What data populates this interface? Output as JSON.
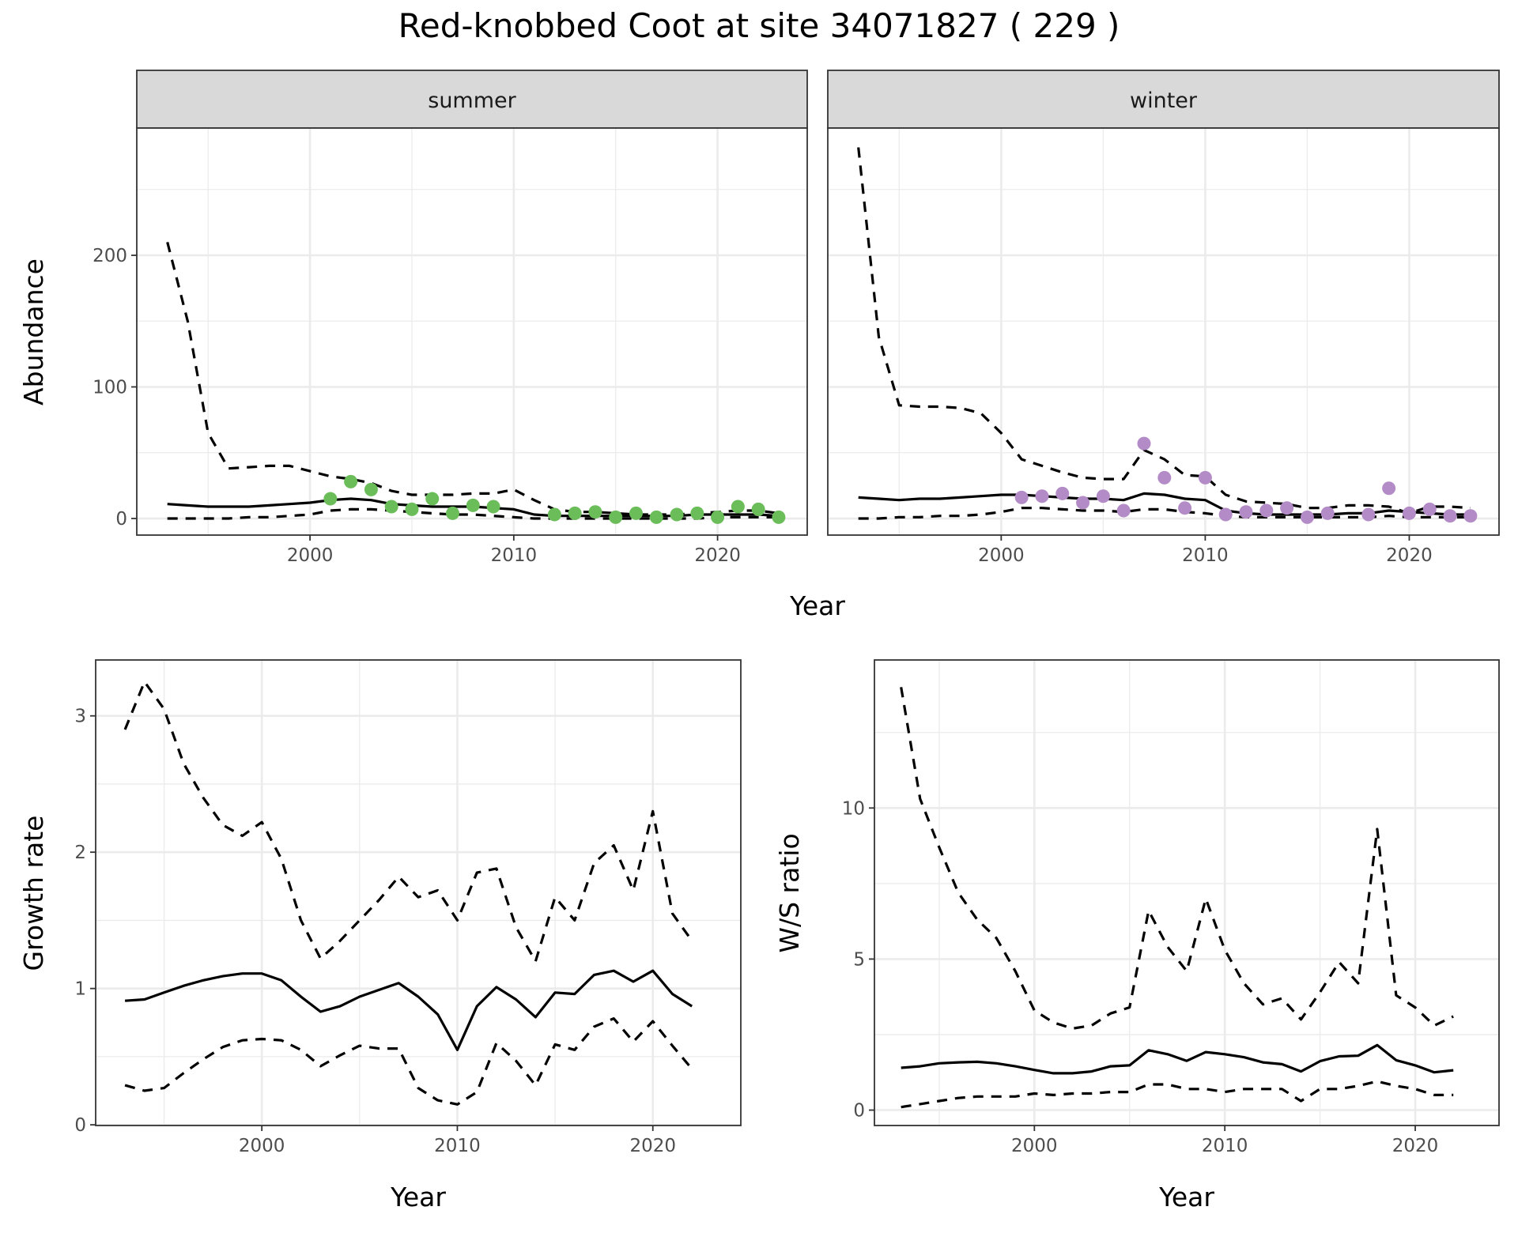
{
  "title": "Red-knobbed Coot at site 34071827 ( 229 )",
  "colors": {
    "summer_points": "#6abd58",
    "winter_points": "#b38bc7",
    "strip_fill": "#d9d9d9",
    "line": "#000000"
  },
  "chart_data": [
    {
      "type": "line",
      "xlabel": "Year",
      "ylabel": "Abundance",
      "xlim": [
        1991.5,
        2024.4
      ],
      "ylim": [
        -12.6,
        296.7
      ],
      "xticks": [
        2000,
        2010,
        2020
      ],
      "yticks": [
        0,
        100,
        200
      ],
      "grid": true,
      "facets": [
        {
          "label": "summer",
          "years": [
            1993,
            1994,
            1995,
            1996,
            1997,
            1998,
            1999,
            2000,
            2001,
            2002,
            2003,
            2004,
            2005,
            2006,
            2007,
            2008,
            2009,
            2010,
            2011,
            2012,
            2013,
            2014,
            2015,
            2016,
            2017,
            2018,
            2019,
            2020,
            2021,
            2022,
            2023
          ],
          "upper": [
            210,
            150,
            65,
            38,
            39,
            40,
            40,
            36,
            32,
            30,
            27,
            21,
            18,
            18,
            18,
            19,
            19,
            22,
            14,
            7,
            5,
            5,
            4,
            3,
            3,
            3,
            4,
            5,
            6,
            6,
            4
          ],
          "median": [
            11,
            10,
            9,
            9,
            9,
            10,
            11,
            12,
            14,
            15,
            14,
            11,
            10,
            9,
            9,
            9,
            8,
            7,
            3,
            2,
            2,
            2,
            2,
            2,
            2,
            2,
            3,
            3,
            3,
            3,
            2
          ],
          "lower": [
            0,
            0,
            0,
            0,
            1,
            1,
            2,
            3,
            6,
            7,
            7,
            6,
            5,
            4,
            3,
            3,
            2,
            1,
            0,
            0,
            0,
            0,
            0,
            0,
            0,
            0,
            0,
            1,
            1,
            1,
            1
          ],
          "points": {
            "years": [
              2001,
              2002,
              2003,
              2004,
              2005,
              2006,
              2007,
              2008,
              2009,
              2012,
              2013,
              2014,
              2015,
              2016,
              2017,
              2018,
              2019,
              2020,
              2021,
              2022,
              2023
            ],
            "values": [
              15,
              28,
              22,
              9,
              7,
              15,
              4,
              10,
              9,
              3,
              4,
              5,
              1,
              4,
              1,
              3,
              4,
              1,
              9,
              7,
              1
            ]
          }
        },
        {
          "label": "winter",
          "years": [
            1993,
            1994,
            1995,
            1996,
            1997,
            1998,
            1999,
            2000,
            2001,
            2002,
            2003,
            2004,
            2005,
            2006,
            2007,
            2008,
            2009,
            2010,
            2011,
            2012,
            2013,
            2014,
            2015,
            2016,
            2017,
            2018,
            2019,
            2020,
            2021,
            2022,
            2023
          ],
          "upper": [
            282,
            138,
            86,
            85,
            85,
            84,
            80,
            65,
            45,
            40,
            35,
            31,
            30,
            30,
            52,
            45,
            33,
            32,
            18,
            13,
            12,
            11,
            8,
            8,
            10,
            10,
            9,
            4,
            9,
            9,
            8
          ],
          "median": [
            16,
            15,
            14,
            15,
            15,
            16,
            17,
            18,
            18,
            17,
            16,
            15,
            15,
            14,
            19,
            18,
            15,
            14,
            6,
            4,
            3,
            3,
            3,
            3,
            4,
            4,
            6,
            5,
            4,
            3,
            3
          ],
          "lower": [
            0,
            0,
            1,
            1,
            2,
            2,
            3,
            5,
            8,
            8,
            7,
            6,
            6,
            5,
            7,
            7,
            5,
            4,
            2,
            1,
            1,
            1,
            1,
            1,
            1,
            1,
            2,
            1,
            1,
            1,
            1
          ],
          "points": {
            "years": [
              2001,
              2002,
              2003,
              2004,
              2005,
              2006,
              2007,
              2008,
              2009,
              2010,
              2011,
              2012,
              2013,
              2014,
              2015,
              2016,
              2018,
              2019,
              2020,
              2021,
              2022,
              2023
            ],
            "values": [
              16,
              17,
              19,
              12,
              17,
              6,
              57,
              31,
              8,
              31,
              3,
              5,
              6,
              8,
              1,
              4,
              3,
              23,
              4,
              7,
              2,
              2
            ]
          }
        }
      ]
    },
    {
      "type": "line",
      "xlabel": "Year",
      "ylabel": "Growth rate",
      "xlim": [
        1991.5,
        2024.5
      ],
      "ylim": [
        -0.005,
        3.41
      ],
      "xticks": [
        2000,
        2010,
        2020
      ],
      "yticks": [
        0,
        1,
        2,
        3
      ],
      "grid": true,
      "years": [
        1993,
        1994,
        1995,
        1996,
        1997,
        1998,
        1999,
        2000,
        2001,
        2002,
        2003,
        2004,
        2005,
        2006,
        2007,
        2008,
        2009,
        2010,
        2011,
        2012,
        2013,
        2014,
        2015,
        2016,
        2017,
        2018,
        2019,
        2020,
        2021,
        2022
      ],
      "upper": [
        2.9,
        3.25,
        3.05,
        2.65,
        2.4,
        2.2,
        2.12,
        2.22,
        1.95,
        1.5,
        1.22,
        1.35,
        1.5,
        1.65,
        1.82,
        1.67,
        1.72,
        1.5,
        1.85,
        1.88,
        1.45,
        1.2,
        1.67,
        1.5,
        1.92,
        2.05,
        1.72,
        2.3,
        1.55,
        1.35
      ],
      "median": [
        0.91,
        0.92,
        0.97,
        1.02,
        1.06,
        1.09,
        1.11,
        1.11,
        1.06,
        0.94,
        0.83,
        0.87,
        0.94,
        0.99,
        1.04,
        0.94,
        0.81,
        0.55,
        0.87,
        1.01,
        0.92,
        0.79,
        0.97,
        0.96,
        1.1,
        1.13,
        1.05,
        1.13,
        0.96,
        0.87
      ],
      "lower": [
        0.29,
        0.25,
        0.27,
        0.38,
        0.48,
        0.57,
        0.62,
        0.63,
        0.62,
        0.55,
        0.43,
        0.51,
        0.58,
        0.56,
        0.56,
        0.27,
        0.18,
        0.15,
        0.24,
        0.6,
        0.47,
        0.29,
        0.59,
        0.55,
        0.72,
        0.78,
        0.61,
        0.76,
        0.58,
        0.41
      ]
    },
    {
      "type": "line",
      "xlabel": "Year",
      "ylabel": "W/S ratio",
      "xlim": [
        1991.6,
        2024.4
      ],
      "ylim": [
        -0.51,
        14.9
      ],
      "xticks": [
        2000,
        2010,
        2020
      ],
      "yticks": [
        0,
        5,
        10
      ],
      "grid": true,
      "years": [
        1993,
        1994,
        1995,
        1996,
        1997,
        1998,
        1999,
        2000,
        2001,
        2002,
        2003,
        2004,
        2005,
        2006,
        2007,
        2008,
        2009,
        2010,
        2011,
        2012,
        2013,
        2014,
        2015,
        2016,
        2017,
        2018,
        2019,
        2020,
        2021,
        2022
      ],
      "upper": [
        14.0,
        10.3,
        8.7,
        7.2,
        6.3,
        5.7,
        4.6,
        3.3,
        2.9,
        2.7,
        2.8,
        3.2,
        3.4,
        6.6,
        5.4,
        4.6,
        7.0,
        5.3,
        4.2,
        3.5,
        3.7,
        3.0,
        3.9,
        4.9,
        4.2,
        9.3,
        3.8,
        3.4,
        2.8,
        3.1
      ],
      "median": [
        1.4,
        1.45,
        1.55,
        1.58,
        1.6,
        1.55,
        1.45,
        1.33,
        1.22,
        1.22,
        1.28,
        1.45,
        1.48,
        1.98,
        1.85,
        1.63,
        1.92,
        1.85,
        1.75,
        1.58,
        1.52,
        1.28,
        1.62,
        1.78,
        1.8,
        2.15,
        1.65,
        1.48,
        1.25,
        1.32
      ],
      "lower": [
        0.1,
        0.2,
        0.3,
        0.4,
        0.45,
        0.45,
        0.45,
        0.55,
        0.5,
        0.55,
        0.55,
        0.6,
        0.6,
        0.85,
        0.85,
        0.7,
        0.7,
        0.6,
        0.7,
        0.7,
        0.7,
        0.3,
        0.7,
        0.7,
        0.8,
        0.95,
        0.8,
        0.7,
        0.5,
        0.5
      ]
    }
  ]
}
